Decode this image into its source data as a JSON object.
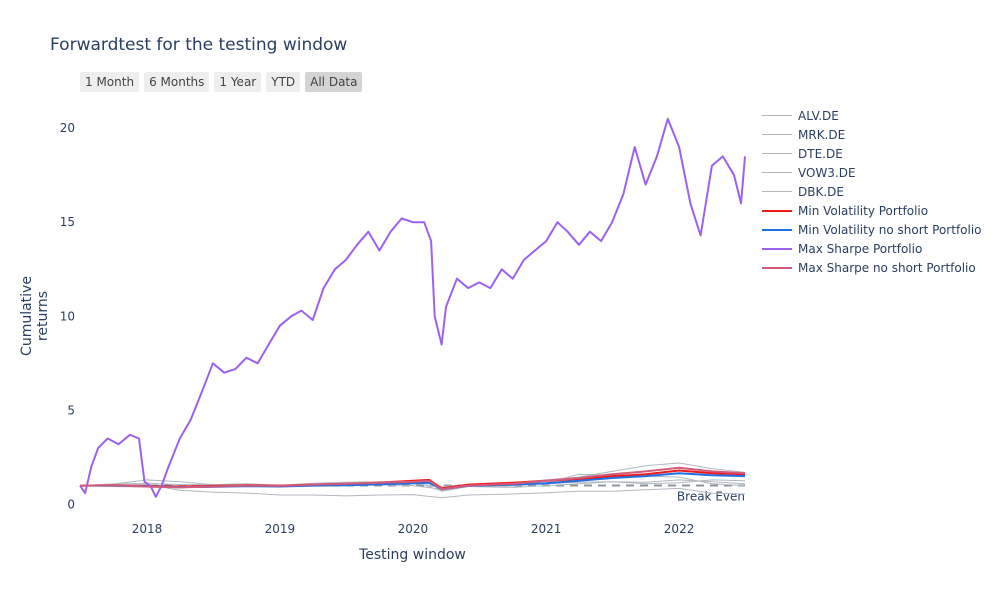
{
  "chart_data": {
    "type": "line",
    "title": "Forwardtest for the testing window",
    "xlabel": "Testing window",
    "ylabel": "Cumulative returns",
    "x_range": [
      "2017-07-01",
      "2022-07-01"
    ],
    "x_ticks": [
      "2018",
      "2019",
      "2020",
      "2021",
      "2022"
    ],
    "ylim": [
      -0.3,
      21.5
    ],
    "y_ticks": [
      0,
      5,
      10,
      15,
      20
    ],
    "grid": false,
    "legend_position": "right",
    "range_selector": [
      "1 Month",
      "6 Months",
      "1 Year",
      "YTD",
      "All Data"
    ],
    "range_selected": "All Data",
    "annotations": [
      {
        "text": "Break Even",
        "y": 1
      }
    ],
    "series": [
      {
        "name": "ALV.DE",
        "color": "#b0b8c0",
        "width": 1,
        "points": [
          [
            "2017-07-01",
            1.0
          ],
          [
            "2017-10-01",
            1.08
          ],
          [
            "2018-01-01",
            1.12
          ],
          [
            "2018-04-01",
            1.05
          ],
          [
            "2018-07-01",
            1.05
          ],
          [
            "2018-10-01",
            1.1
          ],
          [
            "2019-01-01",
            1.02
          ],
          [
            "2019-04-01",
            1.12
          ],
          [
            "2019-07-01",
            1.18
          ],
          [
            "2019-10-01",
            1.2
          ],
          [
            "2020-01-01",
            1.25
          ],
          [
            "2020-02-15",
            1.28
          ],
          [
            "2020-03-20",
            0.75
          ],
          [
            "2020-06-01",
            0.95
          ],
          [
            "2020-10-01",
            1.0
          ],
          [
            "2021-01-01",
            1.1
          ],
          [
            "2021-04-01",
            1.18
          ],
          [
            "2021-07-01",
            1.2
          ],
          [
            "2021-10-01",
            1.18
          ],
          [
            "2022-01-01",
            1.3
          ],
          [
            "2022-04-01",
            1.2
          ],
          [
            "2022-07-01",
            1.1
          ]
        ]
      },
      {
        "name": "MRK.DE",
        "color": "#b0b8c0",
        "width": 1,
        "points": [
          [
            "2017-07-01",
            1.0
          ],
          [
            "2017-10-01",
            0.95
          ],
          [
            "2018-01-01",
            0.92
          ],
          [
            "2018-04-01",
            0.88
          ],
          [
            "2018-07-01",
            0.95
          ],
          [
            "2018-10-01",
            0.98
          ],
          [
            "2019-01-01",
            0.95
          ],
          [
            "2019-04-01",
            1.05
          ],
          [
            "2019-07-01",
            1.0
          ],
          [
            "2019-10-01",
            1.05
          ],
          [
            "2020-01-01",
            1.1
          ],
          [
            "2020-03-20",
            0.95
          ],
          [
            "2020-06-01",
            1.05
          ],
          [
            "2020-10-01",
            1.15
          ],
          [
            "2021-01-01",
            1.3
          ],
          [
            "2021-04-01",
            1.45
          ],
          [
            "2021-07-01",
            1.75
          ],
          [
            "2021-10-01",
            2.05
          ],
          [
            "2022-01-01",
            2.2
          ],
          [
            "2022-04-01",
            1.9
          ],
          [
            "2022-07-01",
            1.7
          ]
        ]
      },
      {
        "name": "DTE.DE",
        "color": "#b0b8c0",
        "width": 1,
        "points": [
          [
            "2017-07-01",
            1.0
          ],
          [
            "2017-10-01",
            1.02
          ],
          [
            "2018-01-01",
            0.95
          ],
          [
            "2018-04-01",
            0.9
          ],
          [
            "2018-07-01",
            0.9
          ],
          [
            "2018-10-01",
            0.95
          ],
          [
            "2019-01-01",
            0.98
          ],
          [
            "2019-04-01",
            0.98
          ],
          [
            "2019-07-01",
            1.0
          ],
          [
            "2019-10-01",
            1.05
          ],
          [
            "2020-01-01",
            1.0
          ],
          [
            "2020-03-20",
            0.8
          ],
          [
            "2020-06-01",
            0.95
          ],
          [
            "2020-10-01",
            0.9
          ],
          [
            "2021-01-01",
            1.0
          ],
          [
            "2021-04-01",
            1.1
          ],
          [
            "2021-07-01",
            1.2
          ],
          [
            "2021-10-01",
            1.1
          ],
          [
            "2022-01-01",
            1.15
          ],
          [
            "2022-04-01",
            1.3
          ],
          [
            "2022-07-01",
            1.25
          ]
        ]
      },
      {
        "name": "VOW3.DE",
        "color": "#b0b8c0",
        "width": 1,
        "points": [
          [
            "2017-07-01",
            1.0
          ],
          [
            "2017-10-01",
            1.08
          ],
          [
            "2018-01-01",
            1.3
          ],
          [
            "2018-04-01",
            1.2
          ],
          [
            "2018-07-01",
            1.05
          ],
          [
            "2018-10-01",
            1.0
          ],
          [
            "2019-01-01",
            0.95
          ],
          [
            "2019-04-01",
            1.05
          ],
          [
            "2019-07-01",
            1.05
          ],
          [
            "2019-10-01",
            1.2
          ],
          [
            "2020-01-01",
            1.25
          ],
          [
            "2020-03-20",
            0.7
          ],
          [
            "2020-06-01",
            0.95
          ],
          [
            "2020-10-01",
            1.0
          ],
          [
            "2021-01-01",
            1.15
          ],
          [
            "2021-04-01",
            1.6
          ],
          [
            "2021-07-01",
            1.55
          ],
          [
            "2021-10-01",
            1.5
          ],
          [
            "2022-01-01",
            1.45
          ],
          [
            "2022-04-01",
            1.1
          ],
          [
            "2022-07-01",
            1.0
          ]
        ]
      },
      {
        "name": "DBK.DE",
        "color": "#b0b8c0",
        "width": 1,
        "points": [
          [
            "2017-07-01",
            1.0
          ],
          [
            "2017-10-01",
            1.0
          ],
          [
            "2018-01-01",
            1.05
          ],
          [
            "2018-04-01",
            0.75
          ],
          [
            "2018-07-01",
            0.65
          ],
          [
            "2018-10-01",
            0.6
          ],
          [
            "2019-01-01",
            0.5
          ],
          [
            "2019-04-01",
            0.5
          ],
          [
            "2019-07-01",
            0.45
          ],
          [
            "2019-10-01",
            0.5
          ],
          [
            "2020-01-01",
            0.52
          ],
          [
            "2020-03-20",
            0.35
          ],
          [
            "2020-06-01",
            0.5
          ],
          [
            "2020-10-01",
            0.55
          ],
          [
            "2021-01-01",
            0.62
          ],
          [
            "2021-04-01",
            0.7
          ],
          [
            "2021-07-01",
            0.7
          ],
          [
            "2021-10-01",
            0.78
          ],
          [
            "2022-01-01",
            0.85
          ],
          [
            "2022-04-01",
            0.6
          ],
          [
            "2022-07-01",
            0.55
          ]
        ]
      },
      {
        "name": "Min Volatility Portfolio",
        "color": "#ef1a1a",
        "width": 2,
        "points": [
          [
            "2017-07-01",
            1.0
          ],
          [
            "2017-10-01",
            1.02
          ],
          [
            "2018-01-01",
            0.98
          ],
          [
            "2018-04-01",
            0.95
          ],
          [
            "2018-07-01",
            0.98
          ],
          [
            "2018-10-01",
            1.02
          ],
          [
            "2019-01-01",
            1.0
          ],
          [
            "2019-04-01",
            1.05
          ],
          [
            "2019-07-01",
            1.1
          ],
          [
            "2019-10-01",
            1.15
          ],
          [
            "2020-01-01",
            1.25
          ],
          [
            "2020-02-15",
            1.3
          ],
          [
            "2020-03-20",
            0.85
          ],
          [
            "2020-06-01",
            1.05
          ],
          [
            "2020-10-01",
            1.15
          ],
          [
            "2021-01-01",
            1.25
          ],
          [
            "2021-04-01",
            1.35
          ],
          [
            "2021-07-01",
            1.5
          ],
          [
            "2021-10-01",
            1.6
          ],
          [
            "2022-01-01",
            1.8
          ],
          [
            "2022-04-01",
            1.65
          ],
          [
            "2022-07-01",
            1.6
          ]
        ]
      },
      {
        "name": "Min Volatility no short Portfolio",
        "color": "#1f6fe0",
        "width": 2,
        "points": [
          [
            "2017-07-01",
            1.0
          ],
          [
            "2017-10-01",
            1.0
          ],
          [
            "2018-01-01",
            0.97
          ],
          [
            "2018-04-01",
            0.92
          ],
          [
            "2018-07-01",
            0.94
          ],
          [
            "2018-10-01",
            0.97
          ],
          [
            "2019-01-01",
            0.95
          ],
          [
            "2019-04-01",
            1.0
          ],
          [
            "2019-07-01",
            1.02
          ],
          [
            "2019-10-01",
            1.06
          ],
          [
            "2020-01-01",
            1.12
          ],
          [
            "2020-02-15",
            1.15
          ],
          [
            "2020-03-20",
            0.8
          ],
          [
            "2020-06-01",
            0.98
          ],
          [
            "2020-10-01",
            1.05
          ],
          [
            "2021-01-01",
            1.12
          ],
          [
            "2021-04-01",
            1.25
          ],
          [
            "2021-07-01",
            1.4
          ],
          [
            "2021-10-01",
            1.5
          ],
          [
            "2022-01-01",
            1.65
          ],
          [
            "2022-04-01",
            1.55
          ],
          [
            "2022-07-01",
            1.5
          ]
        ]
      },
      {
        "name": "Max Sharpe Portfolio",
        "color": "#9b62f0",
        "width": 2,
        "points": [
          [
            "2017-07-01",
            1.0
          ],
          [
            "2017-07-15",
            0.6
          ],
          [
            "2017-08-01",
            2.0
          ],
          [
            "2017-08-20",
            3.0
          ],
          [
            "2017-09-15",
            3.5
          ],
          [
            "2017-10-15",
            3.2
          ],
          [
            "2017-11-15",
            3.7
          ],
          [
            "2017-12-10",
            3.5
          ],
          [
            "2017-12-25",
            1.2
          ],
          [
            "2018-01-10",
            1.0
          ],
          [
            "2018-01-25",
            0.4
          ],
          [
            "2018-02-10",
            1.0
          ],
          [
            "2018-03-01",
            2.0
          ],
          [
            "2018-04-01",
            3.5
          ],
          [
            "2018-05-01",
            4.5
          ],
          [
            "2018-06-01",
            6.0
          ],
          [
            "2018-07-01",
            7.5
          ],
          [
            "2018-08-01",
            7.0
          ],
          [
            "2018-09-01",
            7.2
          ],
          [
            "2018-10-01",
            7.8
          ],
          [
            "2018-11-01",
            7.5
          ],
          [
            "2018-12-01",
            8.5
          ],
          [
            "2019-01-01",
            9.5
          ],
          [
            "2019-02-01",
            10.0
          ],
          [
            "2019-03-01",
            10.3
          ],
          [
            "2019-04-01",
            9.8
          ],
          [
            "2019-05-01",
            11.5
          ],
          [
            "2019-06-01",
            12.5
          ],
          [
            "2019-07-01",
            13.0
          ],
          [
            "2019-08-01",
            13.8
          ],
          [
            "2019-09-01",
            14.5
          ],
          [
            "2019-10-01",
            13.5
          ],
          [
            "2019-11-01",
            14.5
          ],
          [
            "2019-12-01",
            15.2
          ],
          [
            "2020-01-01",
            15.0
          ],
          [
            "2020-02-01",
            15.0
          ],
          [
            "2020-02-20",
            14.0
          ],
          [
            "2020-03-01",
            10.0
          ],
          [
            "2020-03-20",
            8.5
          ],
          [
            "2020-04-01",
            10.5
          ],
          [
            "2020-05-01",
            12.0
          ],
          [
            "2020-06-01",
            11.5
          ],
          [
            "2020-07-01",
            11.8
          ],
          [
            "2020-08-01",
            11.5
          ],
          [
            "2020-09-01",
            12.5
          ],
          [
            "2020-10-01",
            12.0
          ],
          [
            "2020-11-01",
            13.0
          ],
          [
            "2020-12-01",
            13.5
          ],
          [
            "2021-01-01",
            14.0
          ],
          [
            "2021-02-01",
            15.0
          ],
          [
            "2021-03-01",
            14.5
          ],
          [
            "2021-04-01",
            13.8
          ],
          [
            "2021-05-01",
            14.5
          ],
          [
            "2021-06-01",
            14.0
          ],
          [
            "2021-07-01",
            15.0
          ],
          [
            "2021-08-01",
            16.5
          ],
          [
            "2021-09-01",
            19.0
          ],
          [
            "2021-10-01",
            17.0
          ],
          [
            "2021-11-01",
            18.5
          ],
          [
            "2021-12-01",
            20.5
          ],
          [
            "2022-01-01",
            19.0
          ],
          [
            "2022-02-01",
            16.0
          ],
          [
            "2022-03-01",
            14.3
          ],
          [
            "2022-04-01",
            18.0
          ],
          [
            "2022-05-01",
            18.5
          ],
          [
            "2022-06-01",
            17.5
          ],
          [
            "2022-06-20",
            16.0
          ],
          [
            "2022-07-01",
            18.5
          ]
        ]
      },
      {
        "name": "Max Sharpe no short Portfolio",
        "color": "#d45a7a",
        "width": 2,
        "points": [
          [
            "2017-07-01",
            1.0
          ],
          [
            "2017-10-01",
            1.02
          ],
          [
            "2018-01-01",
            0.95
          ],
          [
            "2018-04-01",
            0.9
          ],
          [
            "2018-07-01",
            0.95
          ],
          [
            "2018-10-01",
            1.0
          ],
          [
            "2019-01-01",
            0.98
          ],
          [
            "2019-04-01",
            1.05
          ],
          [
            "2019-07-01",
            1.1
          ],
          [
            "2019-10-01",
            1.15
          ],
          [
            "2020-01-01",
            1.2
          ],
          [
            "2020-02-15",
            1.25
          ],
          [
            "2020-03-20",
            0.8
          ],
          [
            "2020-06-01",
            1.0
          ],
          [
            "2020-10-01",
            1.1
          ],
          [
            "2021-01-01",
            1.25
          ],
          [
            "2021-04-01",
            1.4
          ],
          [
            "2021-07-01",
            1.6
          ],
          [
            "2021-10-01",
            1.75
          ],
          [
            "2022-01-01",
            1.95
          ],
          [
            "2022-04-01",
            1.75
          ],
          [
            "2022-07-01",
            1.65
          ]
        ]
      }
    ]
  }
}
